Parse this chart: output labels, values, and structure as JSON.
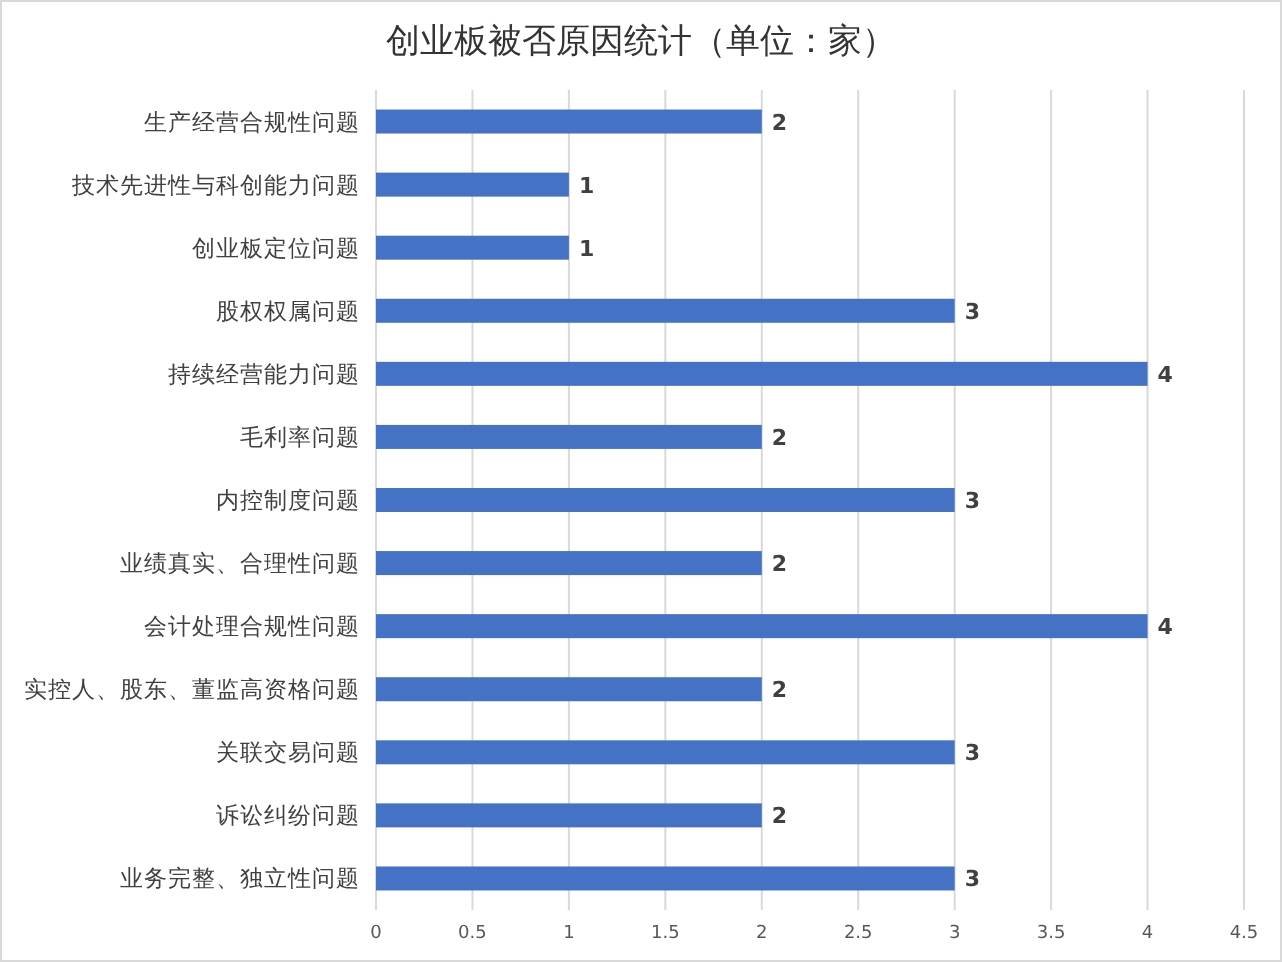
{
  "chart_data": {
    "type": "bar",
    "orientation": "horizontal",
    "title": "创业板被否原因统计（单位：家）",
    "categories": [
      "生产经营合规性问题",
      "技术先进性与科创能力问题",
      "创业板定位问题",
      "股权权属问题",
      "持续经营能力问题",
      "毛利率问题",
      "内控制度问题",
      "业绩真实、合理性问题",
      "会计处理合规性问题",
      "实控人、股东、董监高资格问题",
      "关联交易问题",
      "诉讼纠纷问题",
      "业务完整、独立性问题"
    ],
    "values": [
      2,
      1,
      1,
      3,
      4,
      2,
      3,
      2,
      4,
      2,
      3,
      2,
      3
    ],
    "color": "#4472c4",
    "xlim": [
      0,
      4.5
    ],
    "xticks": [
      0,
      0.5,
      1,
      1.5,
      2,
      2.5,
      3,
      3.5,
      4,
      4.5
    ],
    "grid": "x",
    "data_labels": true
  }
}
